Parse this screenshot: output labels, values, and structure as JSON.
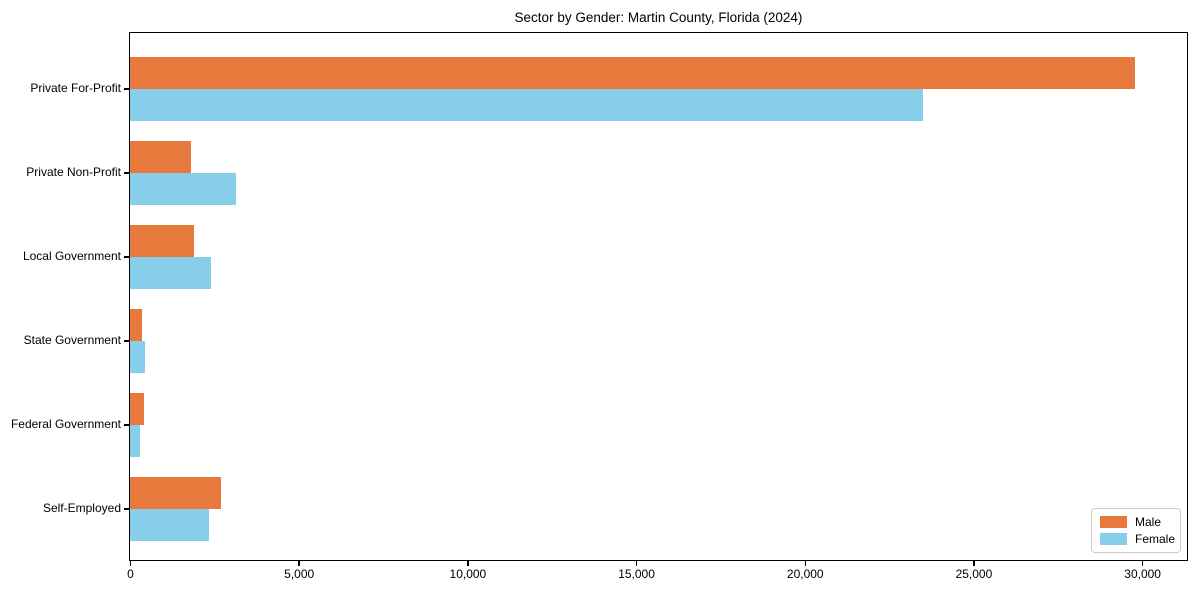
{
  "title": "Sector by Gender: Martin County, Florida (2024)",
  "colors": {
    "male": "#E8793C",
    "female": "#87CEEB",
    "axis": "#000000",
    "legend_border": "#CCCCCC",
    "background": "#FFFFFF"
  },
  "legend": {
    "position": "lower right",
    "items": [
      {
        "label": "Male",
        "color_key": "male"
      },
      {
        "label": "Female",
        "color_key": "female"
      }
    ]
  },
  "chart_data": {
    "type": "bar",
    "orientation": "horizontal",
    "title": "Sector by Gender: Martin County, Florida (2024)",
    "xlabel": "",
    "ylabel": "",
    "categories": [
      "Private For-Profit",
      "Private Non-Profit",
      "Local Government",
      "State Government",
      "Federal Government",
      "Self-Employed"
    ],
    "series": [
      {
        "name": "Male",
        "color": "#E8793C",
        "values": [
          29800,
          1800,
          1900,
          350,
          400,
          2700
        ]
      },
      {
        "name": "Female",
        "color": "#87CEEB",
        "values": [
          23500,
          3150,
          2400,
          450,
          300,
          2350
        ]
      }
    ],
    "xlim": [
      0,
      31300
    ],
    "xticks": [
      0,
      5000,
      10000,
      15000,
      20000,
      25000,
      30000
    ],
    "xtick_labels": [
      "0",
      "5,000",
      "10,000",
      "15,000",
      "20,000",
      "25,000",
      "30,000"
    ],
    "grid": false,
    "legend_position": "lower right"
  }
}
